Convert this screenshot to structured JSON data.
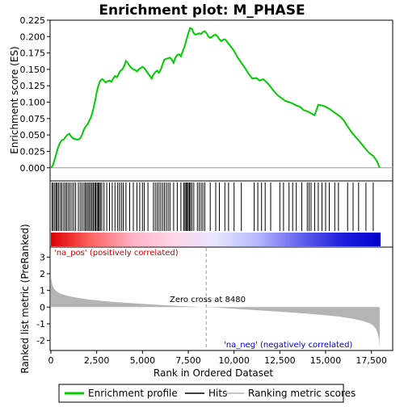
{
  "chart_data": {
    "type": "line",
    "title": "Enrichment plot: M_PHASE",
    "colors": {
      "profile": "#00cc00",
      "ranked_bars": "#b4b4b4",
      "pos_label": "#cc0000",
      "neg_label": "#0000cc",
      "zero_cross_line": "#999999"
    },
    "top_panel": {
      "ylabel": "Enrichment score (ES)",
      "xlim": [
        0,
        18000
      ],
      "ylim": [
        -0.02,
        0.225
      ],
      "yticks": [
        0.0,
        0.025,
        0.05,
        0.075,
        0.1,
        0.125,
        0.15,
        0.175,
        0.2,
        0.225
      ],
      "ytick_labels": [
        "0.000",
        "0.025",
        "0.050",
        "0.075",
        "0.100",
        "0.125",
        "0.150",
        "0.175",
        "0.200",
        "0.225"
      ],
      "series": [
        {
          "name": "Enrichment profile",
          "x": [
            0,
            100,
            200,
            300,
            400,
            500,
            600,
            700,
            800,
            900,
            1000,
            1100,
            1200,
            1300,
            1400,
            1500,
            1600,
            1700,
            1800,
            1900,
            2000,
            2100,
            2200,
            2300,
            2400,
            2500,
            2600,
            2700,
            2800,
            2900,
            3000,
            3100,
            3200,
            3300,
            3400,
            3500,
            3600,
            3700,
            3800,
            3900,
            4000,
            4100,
            4200,
            4300,
            4400,
            4500,
            4600,
            4700,
            4800,
            4900,
            5000,
            5100,
            5200,
            5300,
            5400,
            5500,
            5600,
            5700,
            5800,
            5900,
            6000,
            6100,
            6200,
            6300,
            6400,
            6500,
            6600,
            6700,
            6800,
            6900,
            7000,
            7100,
            7200,
            7300,
            7400,
            7500,
            7600,
            7700,
            7800,
            7900,
            8000,
            8100,
            8200,
            8300,
            8400,
            8500,
            8600,
            8700,
            8800,
            8900,
            9000,
            9100,
            9200,
            9300,
            9400,
            9500,
            9600,
            9700,
            9800,
            9900,
            10000,
            10200,
            10400,
            10600,
            10800,
            11000,
            11200,
            11400,
            11600,
            11800,
            12000,
            12200,
            12400,
            12600,
            12800,
            13000,
            13200,
            13400,
            13600,
            13800,
            14000,
            14200,
            14400,
            14600,
            14800,
            15000,
            15200,
            15400,
            15600,
            15800,
            16000,
            16200,
            16400,
            16600,
            16800,
            17000,
            17200,
            17400,
            17600,
            17800,
            17950
          ],
          "y": [
            0.0,
            0.003,
            0.012,
            0.022,
            0.032,
            0.038,
            0.042,
            0.043,
            0.047,
            0.05,
            0.052,
            0.048,
            0.045,
            0.044,
            0.043,
            0.043,
            0.045,
            0.05,
            0.058,
            0.063,
            0.066,
            0.072,
            0.078,
            0.088,
            0.1,
            0.115,
            0.126,
            0.133,
            0.135,
            0.133,
            0.13,
            0.132,
            0.133,
            0.131,
            0.136,
            0.14,
            0.138,
            0.143,
            0.148,
            0.15,
            0.155,
            0.163,
            0.16,
            0.155,
            0.152,
            0.15,
            0.149,
            0.147,
            0.15,
            0.152,
            0.154,
            0.152,
            0.148,
            0.144,
            0.14,
            0.136,
            0.142,
            0.146,
            0.148,
            0.145,
            0.15,
            0.158,
            0.165,
            0.166,
            0.167,
            0.168,
            0.165,
            0.16,
            0.168,
            0.172,
            0.173,
            0.17,
            0.178,
            0.185,
            0.195,
            0.205,
            0.213,
            0.212,
            0.205,
            0.203,
            0.204,
            0.205,
            0.204,
            0.207,
            0.208,
            0.205,
            0.2,
            0.198,
            0.2,
            0.202,
            0.203,
            0.2,
            0.196,
            0.193,
            0.195,
            0.196,
            0.193,
            0.189,
            0.186,
            0.182,
            0.178,
            0.168,
            0.16,
            0.152,
            0.143,
            0.136,
            0.137,
            0.133,
            0.135,
            0.13,
            0.123,
            0.116,
            0.11,
            0.106,
            0.102,
            0.1,
            0.098,
            0.095,
            0.093,
            0.088,
            0.086,
            0.083,
            0.08,
            0.096,
            0.095,
            0.093,
            0.09,
            0.086,
            0.082,
            0.078,
            0.072,
            0.063,
            0.055,
            0.048,
            0.042,
            0.035,
            0.028,
            0.022,
            0.018,
            0.01,
            0.0
          ]
        }
      ]
    },
    "hits": {
      "positions": [
        60,
        130,
        210,
        290,
        350,
        430,
        520,
        600,
        700,
        790,
        870,
        960,
        1050,
        1150,
        1250,
        1350,
        1500,
        1600,
        1700,
        1800,
        1880,
        1950,
        2030,
        2100,
        2180,
        2250,
        2320,
        2390,
        2450,
        2520,
        2580,
        2640,
        2700,
        2780,
        2900,
        3050,
        3200,
        3350,
        3500,
        3650,
        3750,
        3850,
        3950,
        4100,
        4300,
        4500,
        4700,
        4850,
        5000,
        5100,
        5300,
        5600,
        5700,
        5800,
        5900,
        6000,
        6100,
        6200,
        6300,
        6400,
        6500,
        6700,
        6900,
        7100,
        7250,
        7320,
        7380,
        7440,
        7500,
        7560,
        7620,
        7700,
        7800,
        8000,
        8100,
        8200,
        8300,
        8400,
        8700,
        9000,
        9200,
        9500,
        9700,
        10000,
        10400,
        11100,
        11300,
        11500,
        11700,
        12000,
        12500,
        12700,
        13000,
        13200,
        13400,
        13700,
        14000,
        14100,
        14200,
        14400,
        14600,
        14800,
        15000,
        15200,
        15500,
        15700,
        16200,
        16500,
        16800,
        17200,
        17600
      ]
    },
    "colorbar": {
      "stops": [
        "#dd0000",
        "#ff6666",
        "#ffb3c8",
        "#ffd6e8",
        "#e6e6ff",
        "#b8b8ff",
        "#6666ee",
        "#2222dd",
        "#0000cc"
      ]
    },
    "bottom_panel": {
      "ylabel": "Ranked list metric (PreRanked)",
      "xlabel": "Rank in Ordered Dataset",
      "xlim": [
        0,
        18000
      ],
      "ylim": [
        -2.6,
        3.6
      ],
      "yticks": [
        3,
        2,
        1,
        0,
        -1,
        -2
      ],
      "ytick_labels": [
        "3",
        "2",
        "1",
        "0",
        "-1",
        "-2"
      ],
      "xticks": [
        0,
        2500,
        5000,
        7500,
        10000,
        12500,
        15000,
        17500
      ],
      "xtick_labels": [
        "0",
        "2,500",
        "5,000",
        "7,500",
        "10,000",
        "12,500",
        "15,000",
        "17,500"
      ],
      "metric_curve": {
        "x": [
          0,
          30,
          80,
          150,
          250,
          400,
          600,
          900,
          1300,
          2000,
          3000,
          4000,
          5000,
          6000,
          7000,
          8000,
          8480,
          9000,
          10000,
          11000,
          12000,
          13000,
          14000,
          15000,
          15800,
          16500,
          17000,
          17400,
          17600,
          17750,
          17850,
          17920,
          17950
        ],
        "y": [
          1.85,
          1.6,
          1.35,
          1.15,
          1.0,
          0.88,
          0.78,
          0.68,
          0.58,
          0.46,
          0.35,
          0.27,
          0.2,
          0.13,
          0.07,
          0.02,
          0.0,
          -0.03,
          -0.1,
          -0.17,
          -0.24,
          -0.31,
          -0.39,
          -0.49,
          -0.58,
          -0.7,
          -0.82,
          -0.97,
          -1.1,
          -1.3,
          -1.6,
          -2.0,
          -2.45
        ]
      },
      "zero_cross_text": "Zero cross at 8480",
      "zero_cross_rank": 8480,
      "pos_label": "'na_pos' (positively correlated)",
      "neg_label": "'na_neg' (negatively correlated)"
    },
    "legend": {
      "position": "bottom",
      "items": [
        {
          "label": "Enrichment profile",
          "color": "#00cc00"
        },
        {
          "label": "Hits",
          "color": "#000000"
        },
        {
          "label": "Ranking metric scores",
          "color": "#b4b4b4"
        }
      ]
    }
  }
}
